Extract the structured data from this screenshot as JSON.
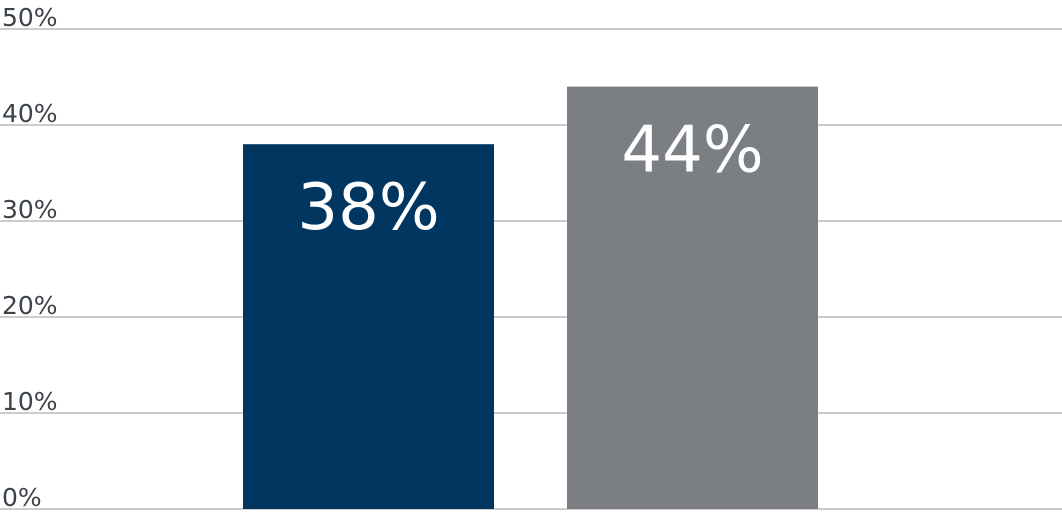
{
  "chart_data": {
    "type": "bar",
    "values": [
      38,
      44
    ],
    "value_labels": [
      "38%",
      "44%"
    ],
    "colors": [
      "#003660",
      "#7b7f83"
    ],
    "ylim": [
      0,
      50
    ],
    "yticks": [
      {
        "value": 0,
        "label": "0%"
      },
      {
        "value": 10,
        "label": "10%"
      },
      {
        "value": 20,
        "label": "20%"
      },
      {
        "value": 30,
        "label": "30%"
      },
      {
        "value": 40,
        "label": "40%"
      },
      {
        "value": 50,
        "label": "50%"
      }
    ],
    "grid": true
  }
}
